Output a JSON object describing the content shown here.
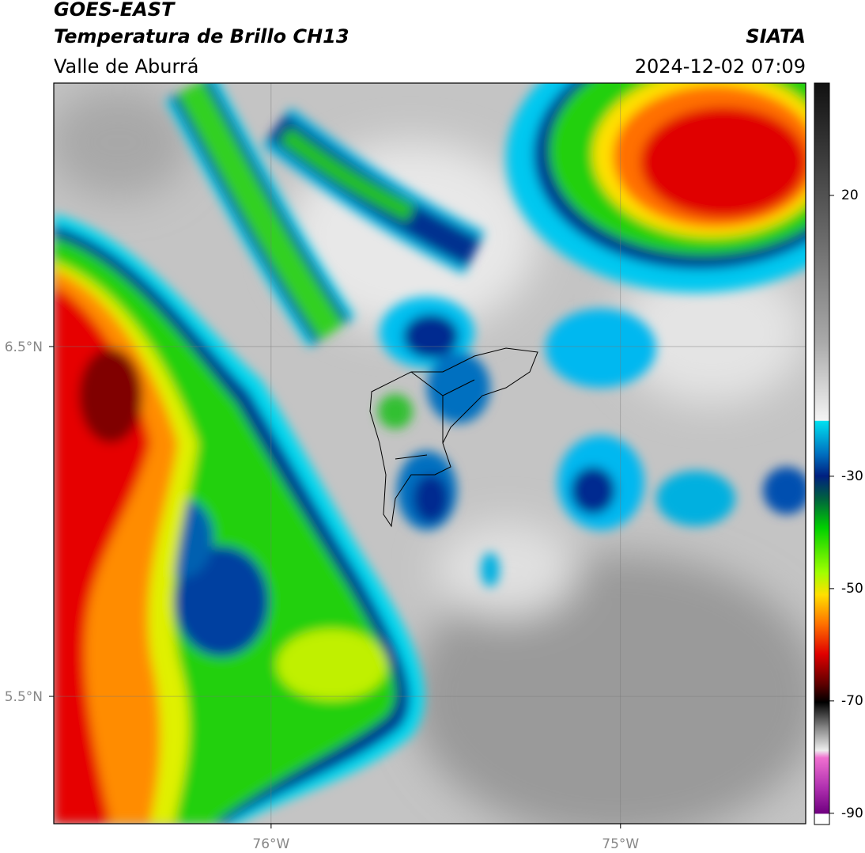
{
  "header": {
    "title": "GOES-EAST",
    "subtitle": "Temperatura de Brillo CH13",
    "region": "Valle de Aburrá",
    "source": "SIATA",
    "datetime": "2024-12-02 07:09"
  },
  "map": {
    "xlim": [
      -76.622,
      -74.47
    ],
    "ylim": [
      5.136,
      7.253
    ],
    "xticks": [
      {
        "value": -76,
        "label": "76°W"
      },
      {
        "value": -75,
        "label": "75°W"
      }
    ],
    "yticks": [
      {
        "value": 5.5,
        "label": "5.5°N"
      },
      {
        "value": 6.5,
        "label": "6.5°N"
      }
    ]
  },
  "colorbar": {
    "lim": [
      -92,
      40
    ],
    "ticks": [
      20,
      -30,
      -50,
      -70,
      -90
    ]
  }
}
